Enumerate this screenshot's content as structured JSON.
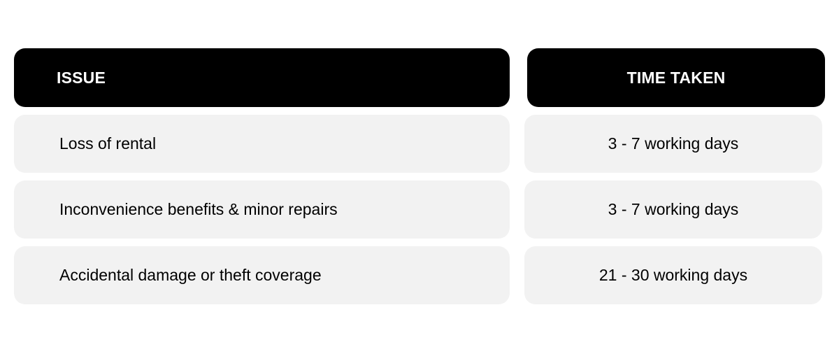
{
  "table": {
    "headers": {
      "issue": "ISSUE",
      "time_taken": "TIME TAKEN"
    },
    "rows": [
      {
        "issue": "Loss of rental",
        "time_taken": "3 - 7 working days"
      },
      {
        "issue": "Inconvenience benefits & minor repairs",
        "time_taken": "3 - 7 working days"
      },
      {
        "issue": "Accidental damage or theft coverage",
        "time_taken": "21 - 30 working days"
      }
    ]
  },
  "colors": {
    "header_background": "#000000",
    "header_text": "#ffffff",
    "row_background": "#f2f2f2",
    "row_text": "#000000"
  }
}
